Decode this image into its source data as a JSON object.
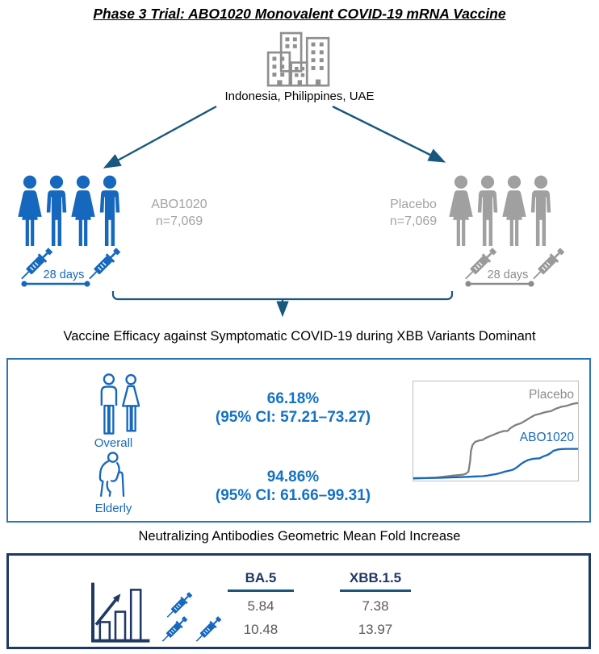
{
  "title": "Phase 3 Trial: ABO1020 Monovalent COVID-19 mRNA Vaccine",
  "sites": {
    "label": "Indonesia, Philippines, UAE"
  },
  "arms": {
    "vaccine": {
      "name": "ABO1020",
      "n": "n=7,069",
      "interval_label": "28 days",
      "doses": 2
    },
    "placebo": {
      "name": "Placebo",
      "n": "n=7,069",
      "interval_label": "28 days",
      "doses": 2
    }
  },
  "efficacy": {
    "heading": "Vaccine Efficacy against Symptomatic COVID-19 during XBB Variants Dominant",
    "overall": {
      "label": "Overall",
      "value": "66.18%",
      "ci": "(95% CI: 57.21–73.27)"
    },
    "elderly": {
      "label": "Elderly",
      "value": "94.86%",
      "ci": "(95% CI: 61.66–99.31)"
    },
    "chart": {
      "type": "line",
      "description": "Cumulative incidence of symptomatic COVID-19 over follow-up time",
      "axes_shown": false,
      "legend_position": "inline-right",
      "coords": "fraction of plot area, y measured from top",
      "series": [
        {
          "name": "Placebo",
          "color": "#808080",
          "points": [
            [
              0,
              0.975
            ],
            [
              0.08,
              0.972
            ],
            [
              0.14,
              0.968
            ],
            [
              0.18,
              0.962
            ],
            [
              0.21,
              0.955
            ],
            [
              0.24,
              0.95
            ],
            [
              0.27,
              0.945
            ],
            [
              0.3,
              0.94
            ],
            [
              0.32,
              0.93
            ],
            [
              0.335,
              0.91
            ],
            [
              0.345,
              0.8
            ],
            [
              0.35,
              0.7
            ],
            [
              0.36,
              0.64
            ],
            [
              0.375,
              0.61
            ],
            [
              0.4,
              0.595
            ],
            [
              0.42,
              0.59
            ],
            [
              0.435,
              0.575
            ],
            [
              0.46,
              0.555
            ],
            [
              0.49,
              0.535
            ],
            [
              0.52,
              0.515
            ],
            [
              0.55,
              0.5
            ],
            [
              0.573,
              0.498
            ],
            [
              0.59,
              0.47
            ],
            [
              0.62,
              0.44
            ],
            [
              0.655,
              0.42
            ],
            [
              0.69,
              0.385
            ],
            [
              0.72,
              0.355
            ],
            [
              0.737,
              0.34
            ],
            [
              0.77,
              0.325
            ],
            [
              0.8,
              0.31
            ],
            [
              0.835,
              0.3
            ],
            [
              0.865,
              0.275
            ],
            [
              0.9,
              0.255
            ],
            [
              0.93,
              0.246
            ],
            [
              0.96,
              0.23
            ],
            [
              0.985,
              0.22
            ],
            [
              1,
              0.218
            ]
          ]
        },
        {
          "name": "ABO1020",
          "color": "#1668BE",
          "points": [
            [
              0,
              0.978
            ],
            [
              0.08,
              0.975
            ],
            [
              0.15,
              0.972
            ],
            [
              0.22,
              0.968
            ],
            [
              0.28,
              0.965
            ],
            [
              0.33,
              0.962
            ],
            [
              0.38,
              0.958
            ],
            [
              0.42,
              0.955
            ],
            [
              0.45,
              0.95
            ],
            [
              0.48,
              0.94
            ],
            [
              0.5,
              0.935
            ],
            [
              0.525,
              0.925
            ],
            [
              0.555,
              0.91
            ],
            [
              0.58,
              0.9
            ],
            [
              0.605,
              0.89
            ],
            [
              0.625,
              0.87
            ],
            [
              0.645,
              0.845
            ],
            [
              0.655,
              0.83
            ],
            [
              0.675,
              0.81
            ],
            [
              0.7,
              0.79
            ],
            [
              0.73,
              0.78
            ],
            [
              0.766,
              0.775
            ],
            [
              0.79,
              0.755
            ],
            [
              0.816,
              0.74
            ],
            [
              0.835,
              0.72
            ],
            [
              0.85,
              0.7
            ],
            [
              0.87,
              0.69
            ],
            [
              0.88,
              0.685
            ],
            [
              0.9,
              0.682
            ],
            [
              0.93,
              0.68
            ],
            [
              0.96,
              0.68
            ],
            [
              1,
              0.68
            ]
          ]
        }
      ]
    }
  },
  "immunogenicity": {
    "heading": "Neutralizing Antibodies Geometric Mean Fold Increase",
    "columns": [
      "BA.5",
      "XBB.1.5"
    ],
    "rows": [
      {
        "dose": "after dose 1",
        "values": [
          "5.84",
          "7.38"
        ]
      },
      {
        "dose": "after dose 2",
        "values": [
          "10.48",
          "13.97"
        ]
      }
    ]
  },
  "colors": {
    "accent_blue": "#1668BE",
    "efficacy_text_blue": "#1472C4",
    "flow_teal": "#19587E",
    "navy": "#1F3864",
    "gray_icon": "#A0A0A0",
    "gray_text": "#A3A3A3",
    "value_gray": "#595959",
    "efficacy_box_border": "#2E75B6",
    "chart_placebo": "#808080",
    "chart_vaccine": "#1668BE"
  }
}
